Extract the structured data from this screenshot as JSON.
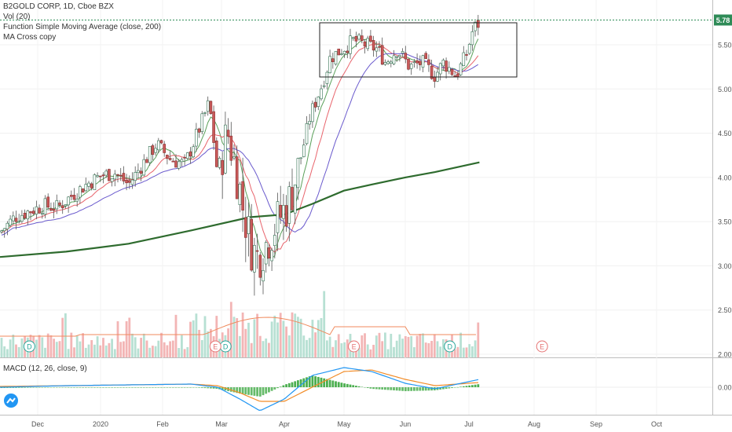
{
  "legend": {
    "title": "B2GOLD CORP, 1D, Cboe BZX",
    "vol": "Vol (20)",
    "sma": "Function Simple Moving Average (close, 200)",
    "macross": "MA Cross copy"
  },
  "macd_legend": "MACD (12, 26, close, 9)",
  "price_badge": "5.78",
  "colors": {
    "up": "#9fcfc3",
    "down": "#c95a5a",
    "wick": "#555555",
    "ma_fast": "#5aa05a",
    "ma_mid": "#e8646c",
    "ma_slow": "#6a5acd",
    "sma200": "#2e6b2e",
    "vol_up": "#b7e0d3",
    "vol_down": "#f3b5b5",
    "vol_ma": "#f08a5d",
    "macd": "#2196f3",
    "signal": "#f28c28",
    "hist_up": "#4caf50",
    "hist_down": "#66bb6a",
    "last_price": "#2e8b57",
    "earnings": "#e57373",
    "dividend": "#26a69a"
  },
  "chart_data": {
    "type": "candlestick",
    "title": "B2GOLD CORP, 1D, Cboe BZX",
    "last_price": 5.78,
    "y_ticks": [
      2.0,
      2.5,
      3.0,
      3.5,
      4.0,
      4.5,
      5.0,
      5.5
    ],
    "ylim": [
      2.0,
      6.0
    ],
    "x_ticks": [
      "Dec",
      "2020",
      "Feb",
      "Mar",
      "Apr",
      "May",
      "Jun",
      "Jul",
      "Aug",
      "Sep",
      "Oct"
    ],
    "x_tick_dates": [
      "2019-12-01",
      "2020-01-01",
      "2020-02-01",
      "2020-03-01",
      "2020-04-01",
      "2020-05-01",
      "2020-06-01",
      "2020-07-01",
      "2020-08-01",
      "2020-09-01",
      "2020-10-01"
    ],
    "close_series": [
      {
        "date": "2019-11-13",
        "close": 3.38
      },
      {
        "date": "2019-11-20",
        "close": 3.55
      },
      {
        "date": "2019-11-27",
        "close": 3.62
      },
      {
        "date": "2019-12-04",
        "close": 3.68
      },
      {
        "date": "2019-12-11",
        "close": 3.66
      },
      {
        "date": "2019-12-18",
        "close": 3.8
      },
      {
        "date": "2019-12-25",
        "close": 3.92
      },
      {
        "date": "2020-01-01",
        "close": 4.02
      },
      {
        "date": "2020-01-08",
        "close": 4.05
      },
      {
        "date": "2020-01-15",
        "close": 3.92
      },
      {
        "date": "2020-01-22",
        "close": 4.15
      },
      {
        "date": "2020-01-29",
        "close": 4.38
      },
      {
        "date": "2020-02-05",
        "close": 4.2
      },
      {
        "date": "2020-02-12",
        "close": 4.15
      },
      {
        "date": "2020-02-19",
        "close": 4.55
      },
      {
        "date": "2020-02-24",
        "close": 4.85
      },
      {
        "date": "2020-02-28",
        "close": 4.05
      },
      {
        "date": "2020-03-04",
        "close": 4.52
      },
      {
        "date": "2020-03-09",
        "close": 4.0
      },
      {
        "date": "2020-03-12",
        "close": 3.6
      },
      {
        "date": "2020-03-16",
        "close": 3.2
      },
      {
        "date": "2020-03-19",
        "close": 3.1
      },
      {
        "date": "2020-03-23",
        "close": 3.25
      },
      {
        "date": "2020-03-26",
        "close": 3.4
      },
      {
        "date": "2020-03-31",
        "close": 3.6
      },
      {
        "date": "2020-04-03",
        "close": 3.7
      },
      {
        "date": "2020-04-08",
        "close": 4.1
      },
      {
        "date": "2020-04-14",
        "close": 4.7
      },
      {
        "date": "2020-04-20",
        "close": 5.05
      },
      {
        "date": "2020-04-24",
        "close": 5.35
      },
      {
        "date": "2020-04-30",
        "close": 5.45
      },
      {
        "date": "2020-05-06",
        "close": 5.55
      },
      {
        "date": "2020-05-12",
        "close": 5.5
      },
      {
        "date": "2020-05-18",
        "close": 5.45
      },
      {
        "date": "2020-05-22",
        "close": 5.3
      },
      {
        "date": "2020-05-28",
        "close": 5.45
      },
      {
        "date": "2020-06-03",
        "close": 5.25
      },
      {
        "date": "2020-06-09",
        "close": 5.3
      },
      {
        "date": "2020-06-15",
        "close": 5.15
      },
      {
        "date": "2020-06-19",
        "close": 5.3
      },
      {
        "date": "2020-06-25",
        "close": 5.15
      },
      {
        "date": "2020-06-30",
        "close": 5.4
      },
      {
        "date": "2020-07-03",
        "close": 5.68
      },
      {
        "date": "2020-07-06",
        "close": 5.75
      }
    ],
    "sma200_series": [
      {
        "date": "2019-11-13",
        "value": 3.1
      },
      {
        "date": "2019-12-15",
        "value": 3.16
      },
      {
        "date": "2020-01-15",
        "value": 3.25
      },
      {
        "date": "2020-02-15",
        "value": 3.4
      },
      {
        "date": "2020-03-15",
        "value": 3.55
      },
      {
        "date": "2020-04-01",
        "value": 3.58
      },
      {
        "date": "2020-04-15",
        "value": 3.7
      },
      {
        "date": "2020-05-01",
        "value": 3.85
      },
      {
        "date": "2020-05-15",
        "value": 3.92
      },
      {
        "date": "2020-06-01",
        "value": 4.0
      },
      {
        "date": "2020-06-15",
        "value": 4.06
      },
      {
        "date": "2020-07-06",
        "value": 4.17
      }
    ],
    "annotations": {
      "dividend_marks": [
        {
          "date": "2019-11-27",
          "label": "D"
        },
        {
          "date": "2020-03-03",
          "label": "D"
        },
        {
          "date": "2020-06-22",
          "label": "D"
        }
      ],
      "earnings_marks": [
        {
          "date": "2020-02-27",
          "label": "E"
        },
        {
          "date": "2020-05-06",
          "label": "E"
        },
        {
          "date": "2020-08-05",
          "label": "E"
        }
      ]
    },
    "macd": {
      "name": "MACD (12, 26, close, 9)",
      "y_ticks": [
        0.0
      ],
      "ylim": [
        -0.35,
        0.3
      ],
      "macd_series": [
        {
          "date": "2019-11-13",
          "value": 0.0
        },
        {
          "date": "2019-12-15",
          "value": 0.02
        },
        {
          "date": "2020-01-15",
          "value": 0.03
        },
        {
          "date": "2020-02-15",
          "value": 0.04
        },
        {
          "date": "2020-02-28",
          "value": 0.0
        },
        {
          "date": "2020-03-10",
          "value": -0.15
        },
        {
          "date": "2020-03-20",
          "value": -0.3
        },
        {
          "date": "2020-04-01",
          "value": -0.15
        },
        {
          "date": "2020-04-15",
          "value": 0.15
        },
        {
          "date": "2020-05-01",
          "value": 0.25
        },
        {
          "date": "2020-05-15",
          "value": 0.2
        },
        {
          "date": "2020-06-01",
          "value": 0.05
        },
        {
          "date": "2020-06-15",
          "value": -0.02
        },
        {
          "date": "2020-07-06",
          "value": 0.1
        }
      ],
      "signal_series": [
        {
          "date": "2019-11-13",
          "value": 0.01
        },
        {
          "date": "2019-12-15",
          "value": 0.02
        },
        {
          "date": "2020-01-15",
          "value": 0.03
        },
        {
          "date": "2020-02-15",
          "value": 0.04
        },
        {
          "date": "2020-02-28",
          "value": 0.02
        },
        {
          "date": "2020-03-10",
          "value": -0.07
        },
        {
          "date": "2020-03-20",
          "value": -0.18
        },
        {
          "date": "2020-04-01",
          "value": -0.18
        },
        {
          "date": "2020-04-15",
          "value": 0.0
        },
        {
          "date": "2020-05-01",
          "value": 0.2
        },
        {
          "date": "2020-05-15",
          "value": 0.22
        },
        {
          "date": "2020-06-01",
          "value": 0.1
        },
        {
          "date": "2020-06-15",
          "value": 0.02
        },
        {
          "date": "2020-07-06",
          "value": 0.06
        }
      ]
    }
  }
}
